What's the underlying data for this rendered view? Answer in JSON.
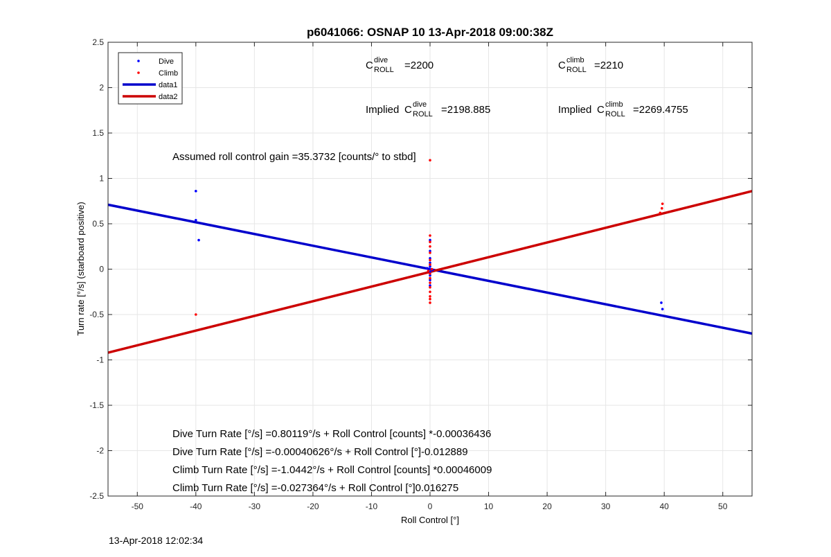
{
  "chart_data": {
    "type": "scatter",
    "title": "p6041066: OSNAP 10 13-Apr-2018 09:00:38Z",
    "xlabel": "Roll Control [°]",
    "ylabel": "Turn rate [°/s] (starboard positive)",
    "xlim": [
      -55,
      55
    ],
    "ylim": [
      -2.5,
      2.5
    ],
    "xticks": [
      -50,
      -40,
      -30,
      -20,
      -10,
      0,
      10,
      20,
      30,
      40,
      50
    ],
    "yticks": [
      -2.5,
      -2,
      -1.5,
      -1,
      -0.5,
      0,
      0.5,
      1,
      1.5,
      2,
      2.5
    ],
    "grid": true,
    "legend_position": "top-left",
    "legend": [
      {
        "label": "Dive",
        "kind": "marker",
        "color": "#0000ff"
      },
      {
        "label": "Climb",
        "kind": "marker",
        "color": "#ff0000"
      },
      {
        "label": "data1",
        "kind": "line",
        "color": "#0000cc"
      },
      {
        "label": "data2",
        "kind": "line",
        "color": "#cc0000"
      }
    ],
    "series": [
      {
        "name": "Dive",
        "kind": "points",
        "color": "#0000ff",
        "points": [
          [
            -40,
            0.86
          ],
          [
            -40,
            0.54
          ],
          [
            -39.5,
            0.32
          ],
          [
            39.5,
            -0.37
          ],
          [
            39.7,
            -0.44
          ],
          [
            0,
            0.32
          ],
          [
            0,
            0.2
          ],
          [
            0,
            0.12
          ],
          [
            0,
            0.07
          ],
          [
            0,
            0.03
          ],
          [
            0,
            0.0
          ],
          [
            0,
            -0.03
          ],
          [
            0,
            -0.07
          ],
          [
            0,
            -0.12
          ],
          [
            0,
            -0.18
          ],
          [
            -0.5,
            0.01
          ],
          [
            0.4,
            -0.01
          ]
        ]
      },
      {
        "name": "Climb",
        "kind": "points",
        "color": "#ff0000",
        "points": [
          [
            -40,
            -0.5
          ],
          [
            39.3,
            0.62
          ],
          [
            39.6,
            0.67
          ],
          [
            39.7,
            0.72
          ],
          [
            0,
            0.37
          ],
          [
            0,
            0.3
          ],
          [
            0,
            0.25
          ],
          [
            0,
            0.18
          ],
          [
            0,
            0.1
          ],
          [
            0,
            0.05
          ],
          [
            0,
            -0.05
          ],
          [
            0,
            -0.1
          ],
          [
            0,
            -0.15
          ],
          [
            0,
            -0.2
          ],
          [
            0,
            -0.25
          ],
          [
            0,
            -0.3
          ],
          [
            0,
            -0.33
          ],
          [
            0,
            -0.37
          ],
          [
            0.3,
            0.0
          ],
          [
            -0.3,
            -0.02
          ],
          [
            0,
            1.2
          ]
        ]
      },
      {
        "name": "data1",
        "kind": "line",
        "color": "#0000cc",
        "points": [
          [
            -55,
            0.71
          ],
          [
            55,
            -0.71
          ]
        ]
      },
      {
        "name": "data2",
        "kind": "line",
        "color": "#cc0000",
        "points": [
          [
            -55,
            -0.92
          ],
          [
            55,
            0.86
          ]
        ]
      }
    ],
    "annotations": {
      "c_dive": {
        "base": "C",
        "sup": "dive",
        "sub": "ROLL",
        "value": "=2200"
      },
      "c_climb": {
        "base": "C",
        "sup": "climb",
        "sub": "ROLL",
        "value": "=2210"
      },
      "implied_dive": {
        "prefix": "Implied ",
        "base": "C",
        "sup": "dive",
        "sub": "ROLL",
        "value": "=2198.885"
      },
      "implied_climb": {
        "prefix": "Implied ",
        "base": "C",
        "sup": "climb",
        "sub": "ROLL",
        "value": "=2269.4755"
      },
      "gain": "Assumed roll control gain =35.3732 [counts/° to stbd]",
      "equations": [
        "Dive Turn Rate [°/s] =0.80119°/s + Roll Control [counts] *-0.00036436",
        "Dive Turn Rate [°/s] =-0.00040626°/s + Roll Control [°]-0.012889",
        "Climb Turn Rate [°/s] =-1.0442°/s + Roll Control [counts] *0.00046009",
        "Climb Turn Rate [°/s] =-0.027364°/s + Roll Control [°]0.016275"
      ]
    }
  },
  "footer": {
    "timestamp": "13-Apr-2018 12:02:34"
  }
}
